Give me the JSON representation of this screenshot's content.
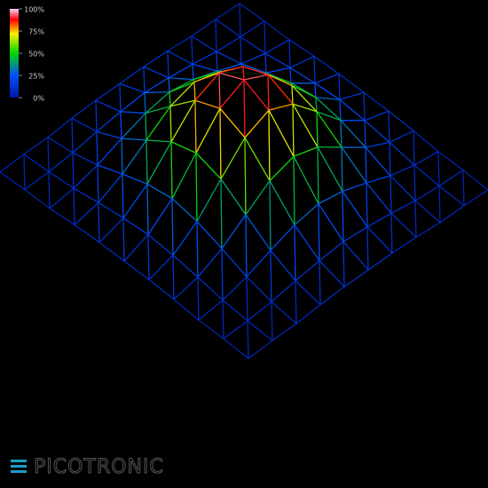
{
  "chart_data": {
    "type": "surface",
    "z": [
      [
        5,
        6,
        6,
        8,
        9,
        9,
        9,
        8,
        6,
        6,
        5
      ],
      [
        6,
        7,
        9,
        13,
        16,
        18,
        16,
        13,
        9,
        7,
        6
      ],
      [
        6,
        9,
        15,
        24,
        32,
        36,
        32,
        24,
        15,
        9,
        6
      ],
      [
        8,
        13,
        24,
        40,
        56,
        63,
        56,
        40,
        24,
        13,
        8
      ],
      [
        9,
        16,
        32,
        56,
        79,
        89,
        79,
        56,
        32,
        16,
        9
      ],
      [
        9,
        18,
        36,
        63,
        89,
        100,
        89,
        63,
        36,
        18,
        9
      ],
      [
        9,
        16,
        32,
        56,
        79,
        89,
        79,
        56,
        32,
        16,
        9
      ],
      [
        8,
        13,
        24,
        40,
        56,
        63,
        56,
        40,
        24,
        13,
        8
      ],
      [
        6,
        9,
        15,
        24,
        32,
        36,
        32,
        24,
        15,
        9,
        6
      ],
      [
        6,
        7,
        9,
        13,
        16,
        18,
        16,
        13,
        9,
        7,
        6
      ],
      [
        5,
        6,
        6,
        8,
        9,
        9,
        9,
        8,
        6,
        6,
        5
      ]
    ],
    "zlim": [
      0,
      100
    ],
    "colorbar_ticks": [
      {
        "value": 100,
        "label": "100%"
      },
      {
        "value": 75,
        "label": "75%"
      },
      {
        "value": 50,
        "label": "50%"
      },
      {
        "value": 25,
        "label": "25%"
      },
      {
        "value": 0,
        "label": "0%"
      }
    ],
    "colorscale": [
      [
        0,
        "#0018a0"
      ],
      [
        25,
        "#0050ff"
      ],
      [
        50,
        "#00d800"
      ],
      [
        72,
        "#ffee00"
      ],
      [
        88,
        "#ff0000"
      ],
      [
        100,
        "#ffd0ff"
      ]
    ],
    "brand": "PICOTRONIC"
  }
}
